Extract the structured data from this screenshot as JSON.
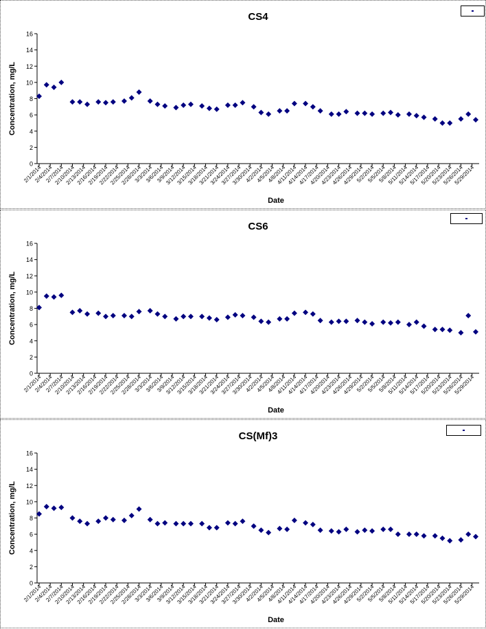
{
  "charts": [
    {
      "chart_data": {
        "type": "scatter",
        "title": "CS4",
        "xlabel": "Date",
        "ylabel": "Concentration, mg/L",
        "ylim": [
          0,
          16
        ],
        "yticks": [
          "0",
          "2",
          "4",
          "6",
          "8",
          "10",
          "12",
          "14",
          "16"
        ],
        "grid": false,
        "legend": "top-right",
        "marker_color": "#000080",
        "xlabels": [
          "2/1/2014",
          "2/4/2014",
          "2/7/2014",
          "2/10/2014",
          "2/13/2014",
          "2/16/2014",
          "2/19/2014",
          "2/22/2014",
          "2/25/2014",
          "2/28/2014",
          "3/3/2014",
          "3/6/2014",
          "3/9/2014",
          "3/12/2014",
          "3/15/2014",
          "3/18/2014",
          "3/21/2014",
          "3/24/2014",
          "3/27/2014",
          "3/30/2014",
          "4/2/2014",
          "4/5/2014",
          "4/8/2014",
          "4/11/2014",
          "4/14/2014",
          "4/17/2014",
          "4/20/2014",
          "4/23/2014",
          "4/26/2014",
          "4/29/2014",
          "5/2/2014",
          "5/5/2014",
          "5/8/2014",
          "5/11/2014",
          "5/14/2014",
          "5/17/2014",
          "5/20/2014",
          "5/23/2014",
          "5/26/2014",
          "5/29/2014"
        ],
        "points": [
          {
            "date": "2/1/2014",
            "y": 8.3
          },
          {
            "date": "2/3/2014",
            "y": 9.7
          },
          {
            "date": "2/5/2014",
            "y": 9.4
          },
          {
            "date": "2/7/2014",
            "y": 10.0
          },
          {
            "date": "2/10/2014",
            "y": 7.6
          },
          {
            "date": "2/12/2014",
            "y": 7.6
          },
          {
            "date": "2/14/2014",
            "y": 7.3
          },
          {
            "date": "2/17/2014",
            "y": 7.6
          },
          {
            "date": "2/19/2014",
            "y": 7.5
          },
          {
            "date": "2/21/2014",
            "y": 7.6
          },
          {
            "date": "2/24/2014",
            "y": 7.7
          },
          {
            "date": "2/26/2014",
            "y": 8.1
          },
          {
            "date": "2/28/2014",
            "y": 8.8
          },
          {
            "date": "3/3/2014",
            "y": 7.7
          },
          {
            "date": "3/5/2014",
            "y": 7.3
          },
          {
            "date": "3/7/2014",
            "y": 7.1
          },
          {
            "date": "3/10/2014",
            "y": 6.9
          },
          {
            "date": "3/12/2014",
            "y": 7.2
          },
          {
            "date": "3/14/2014",
            "y": 7.3
          },
          {
            "date": "3/17/2014",
            "y": 7.1
          },
          {
            "date": "3/19/2014",
            "y": 6.8
          },
          {
            "date": "3/21/2014",
            "y": 6.7
          },
          {
            "date": "3/24/2014",
            "y": 7.2
          },
          {
            "date": "3/26/2014",
            "y": 7.2
          },
          {
            "date": "3/28/2014",
            "y": 7.5
          },
          {
            "date": "3/31/2014",
            "y": 7.0
          },
          {
            "date": "4/2/2014",
            "y": 6.3
          },
          {
            "date": "4/4/2014",
            "y": 6.1
          },
          {
            "date": "4/7/2014",
            "y": 6.5
          },
          {
            "date": "4/9/2014",
            "y": 6.5
          },
          {
            "date": "4/11/2014",
            "y": 7.4
          },
          {
            "date": "4/14/2014",
            "y": 7.4
          },
          {
            "date": "4/16/2014",
            "y": 7.0
          },
          {
            "date": "4/18/2014",
            "y": 6.5
          },
          {
            "date": "4/21/2014",
            "y": 6.1
          },
          {
            "date": "4/23/2014",
            "y": 6.1
          },
          {
            "date": "4/25/2014",
            "y": 6.4
          },
          {
            "date": "4/28/2014",
            "y": 6.2
          },
          {
            "date": "4/30/2014",
            "y": 6.2
          },
          {
            "date": "5/2/2014",
            "y": 6.1
          },
          {
            "date": "5/5/2014",
            "y": 6.2
          },
          {
            "date": "5/7/2014",
            "y": 6.3
          },
          {
            "date": "5/9/2014",
            "y": 6.0
          },
          {
            "date": "5/12/2014",
            "y": 6.1
          },
          {
            "date": "5/14/2014",
            "y": 5.9
          },
          {
            "date": "5/16/2014",
            "y": 5.7
          },
          {
            "date": "5/19/2014",
            "y": 5.5
          },
          {
            "date": "5/21/2014",
            "y": 5.0
          },
          {
            "date": "5/23/2014",
            "y": 5.0
          },
          {
            "date": "5/26/2014",
            "y": 5.5
          },
          {
            "date": "5/28/2014",
            "y": 6.1
          },
          {
            "date": "5/30/2014",
            "y": 5.4
          }
        ]
      }
    },
    {
      "chart_data": {
        "type": "scatter",
        "title": "CS6",
        "xlabel": "Date",
        "ylabel": "Concentration, mg/L",
        "ylim": [
          0,
          16
        ],
        "yticks": [
          "0",
          "2",
          "4",
          "6",
          "8",
          "10",
          "12",
          "14",
          "16"
        ],
        "grid": false,
        "legend": "top-right",
        "marker_color": "#000080",
        "xlabels": [
          "2/1/2014",
          "2/4/2014",
          "2/7/2014",
          "2/10/2014",
          "2/13/2014",
          "2/16/2014",
          "2/19/2014",
          "2/22/2014",
          "2/25/2014",
          "2/28/2014",
          "3/3/2014",
          "3/6/2014",
          "3/9/2014",
          "3/12/2014",
          "3/15/2014",
          "3/18/2014",
          "3/21/2014",
          "3/24/2014",
          "3/27/2014",
          "3/30/2014",
          "4/2/2014",
          "4/5/2014",
          "4/8/2014",
          "4/11/2014",
          "4/14/2014",
          "4/17/2014",
          "4/20/2014",
          "4/23/2014",
          "4/26/2014",
          "4/29/2014",
          "5/2/2014",
          "5/5/2014",
          "5/8/2014",
          "5/11/2014",
          "5/14/2014",
          "5/17/2014",
          "5/20/2014",
          "5/23/2014",
          "5/26/2014",
          "5/29/2014"
        ],
        "points": [
          {
            "date": "2/1/2014",
            "y": 8.1
          },
          {
            "date": "2/3/2014",
            "y": 9.5
          },
          {
            "date": "2/5/2014",
            "y": 9.4
          },
          {
            "date": "2/7/2014",
            "y": 9.6
          },
          {
            "date": "2/10/2014",
            "y": 7.5
          },
          {
            "date": "2/12/2014",
            "y": 7.7
          },
          {
            "date": "2/14/2014",
            "y": 7.3
          },
          {
            "date": "2/17/2014",
            "y": 7.4
          },
          {
            "date": "2/19/2014",
            "y": 7.0
          },
          {
            "date": "2/21/2014",
            "y": 7.1
          },
          {
            "date": "2/24/2014",
            "y": 7.1
          },
          {
            "date": "2/26/2014",
            "y": 7.0
          },
          {
            "date": "2/28/2014",
            "y": 7.6
          },
          {
            "date": "3/3/2014",
            "y": 7.7
          },
          {
            "date": "3/5/2014",
            "y": 7.3
          },
          {
            "date": "3/7/2014",
            "y": 7.0
          },
          {
            "date": "3/10/2014",
            "y": 6.7
          },
          {
            "date": "3/12/2014",
            "y": 7.0
          },
          {
            "date": "3/14/2014",
            "y": 7.0
          },
          {
            "date": "3/17/2014",
            "y": 7.0
          },
          {
            "date": "3/19/2014",
            "y": 6.8
          },
          {
            "date": "3/21/2014",
            "y": 6.6
          },
          {
            "date": "3/24/2014",
            "y": 6.9
          },
          {
            "date": "3/26/2014",
            "y": 7.2
          },
          {
            "date": "3/28/2014",
            "y": 7.1
          },
          {
            "date": "3/31/2014",
            "y": 6.9
          },
          {
            "date": "4/2/2014",
            "y": 6.4
          },
          {
            "date": "4/4/2014",
            "y": 6.3
          },
          {
            "date": "4/7/2014",
            "y": 6.7
          },
          {
            "date": "4/9/2014",
            "y": 6.7
          },
          {
            "date": "4/11/2014",
            "y": 7.4
          },
          {
            "date": "4/14/2014",
            "y": 7.5
          },
          {
            "date": "4/16/2014",
            "y": 7.3
          },
          {
            "date": "4/18/2014",
            "y": 6.5
          },
          {
            "date": "4/21/2014",
            "y": 6.3
          },
          {
            "date": "4/23/2014",
            "y": 6.4
          },
          {
            "date": "4/25/2014",
            "y": 6.4
          },
          {
            "date": "4/28/2014",
            "y": 6.5
          },
          {
            "date": "4/30/2014",
            "y": 6.3
          },
          {
            "date": "5/2/2014",
            "y": 6.1
          },
          {
            "date": "5/5/2014",
            "y": 6.3
          },
          {
            "date": "5/7/2014",
            "y": 6.2
          },
          {
            "date": "5/9/2014",
            "y": 6.3
          },
          {
            "date": "5/12/2014",
            "y": 6.0
          },
          {
            "date": "5/14/2014",
            "y": 6.3
          },
          {
            "date": "5/16/2014",
            "y": 5.8
          },
          {
            "date": "5/19/2014",
            "y": 5.4
          },
          {
            "date": "5/21/2014",
            "y": 5.4
          },
          {
            "date": "5/23/2014",
            "y": 5.3
          },
          {
            "date": "5/26/2014",
            "y": 5.0
          },
          {
            "date": "5/28/2014",
            "y": 7.1
          },
          {
            "date": "5/30/2014",
            "y": 5.1
          }
        ]
      }
    },
    {
      "chart_data": {
        "type": "scatter",
        "title": "CS(Mf)3",
        "xlabel": "Date",
        "ylabel": "Concentration, mg/L",
        "ylim": [
          0,
          16
        ],
        "yticks": [
          "0",
          "2",
          "4",
          "6",
          "8",
          "10",
          "12",
          "14",
          "16"
        ],
        "grid": false,
        "legend": "top-right",
        "marker_color": "#000080",
        "xlabels": [
          "2/1/2014",
          "2/4/2014",
          "2/7/2014",
          "2/10/2014",
          "2/13/2014",
          "2/16/2014",
          "2/19/2014",
          "2/22/2014",
          "2/25/2014",
          "2/28/2014",
          "3/3/2014",
          "3/6/2014",
          "3/9/2014",
          "3/12/2014",
          "3/15/2014",
          "3/18/2014",
          "3/21/2014",
          "3/24/2014",
          "3/27/2014",
          "3/30/2014",
          "4/2/2014",
          "4/5/2014",
          "4/8/2014",
          "4/11/2014",
          "4/14/2014",
          "4/17/2014",
          "4/20/2014",
          "4/23/2014",
          "4/26/2014",
          "4/29/2014",
          "5/2/2014",
          "5/5/2014",
          "5/8/2014",
          "5/11/2014",
          "5/14/2014",
          "5/17/2014",
          "5/20/2014",
          "5/23/2014",
          "5/26/2014",
          "5/29/2014"
        ],
        "points": [
          {
            "date": "2/1/2014",
            "y": 8.5
          },
          {
            "date": "2/3/2014",
            "y": 9.4
          },
          {
            "date": "2/5/2014",
            "y": 9.2
          },
          {
            "date": "2/7/2014",
            "y": 9.3
          },
          {
            "date": "2/10/2014",
            "y": 8.0
          },
          {
            "date": "2/12/2014",
            "y": 7.6
          },
          {
            "date": "2/14/2014",
            "y": 7.3
          },
          {
            "date": "2/17/2014",
            "y": 7.6
          },
          {
            "date": "2/19/2014",
            "y": 8.0
          },
          {
            "date": "2/21/2014",
            "y": 7.8
          },
          {
            "date": "2/24/2014",
            "y": 7.7
          },
          {
            "date": "2/26/2014",
            "y": 8.3
          },
          {
            "date": "2/28/2014",
            "y": 9.1
          },
          {
            "date": "3/3/2014",
            "y": 7.8
          },
          {
            "date": "3/5/2014",
            "y": 7.3
          },
          {
            "date": "3/7/2014",
            "y": 7.4
          },
          {
            "date": "3/10/2014",
            "y": 7.3
          },
          {
            "date": "3/12/2014",
            "y": 7.3
          },
          {
            "date": "3/14/2014",
            "y": 7.3
          },
          {
            "date": "3/17/2014",
            "y": 7.3
          },
          {
            "date": "3/19/2014",
            "y": 6.8
          },
          {
            "date": "3/21/2014",
            "y": 6.8
          },
          {
            "date": "3/24/2014",
            "y": 7.4
          },
          {
            "date": "3/26/2014",
            "y": 7.3
          },
          {
            "date": "3/28/2014",
            "y": 7.6
          },
          {
            "date": "3/31/2014",
            "y": 7.0
          },
          {
            "date": "4/2/2014",
            "y": 6.5
          },
          {
            "date": "4/4/2014",
            "y": 6.2
          },
          {
            "date": "4/7/2014",
            "y": 6.7
          },
          {
            "date": "4/9/2014",
            "y": 6.6
          },
          {
            "date": "4/11/2014",
            "y": 7.7
          },
          {
            "date": "4/14/2014",
            "y": 7.4
          },
          {
            "date": "4/16/2014",
            "y": 7.2
          },
          {
            "date": "4/18/2014",
            "y": 6.5
          },
          {
            "date": "4/21/2014",
            "y": 6.4
          },
          {
            "date": "4/23/2014",
            "y": 6.3
          },
          {
            "date": "4/25/2014",
            "y": 6.6
          },
          {
            "date": "4/28/2014",
            "y": 6.3
          },
          {
            "date": "4/30/2014",
            "y": 6.5
          },
          {
            "date": "5/2/2014",
            "y": 6.4
          },
          {
            "date": "5/5/2014",
            "y": 6.6
          },
          {
            "date": "5/7/2014",
            "y": 6.6
          },
          {
            "date": "5/9/2014",
            "y": 6.0
          },
          {
            "date": "5/12/2014",
            "y": 6.0
          },
          {
            "date": "5/14/2014",
            "y": 6.0
          },
          {
            "date": "5/16/2014",
            "y": 5.8
          },
          {
            "date": "5/19/2014",
            "y": 5.8
          },
          {
            "date": "5/21/2014",
            "y": 5.5
          },
          {
            "date": "5/23/2014",
            "y": 5.2
          },
          {
            "date": "5/26/2014",
            "y": 5.3
          },
          {
            "date": "5/28/2014",
            "y": 6.0
          },
          {
            "date": "5/30/2014",
            "y": 5.7
          }
        ]
      }
    }
  ]
}
